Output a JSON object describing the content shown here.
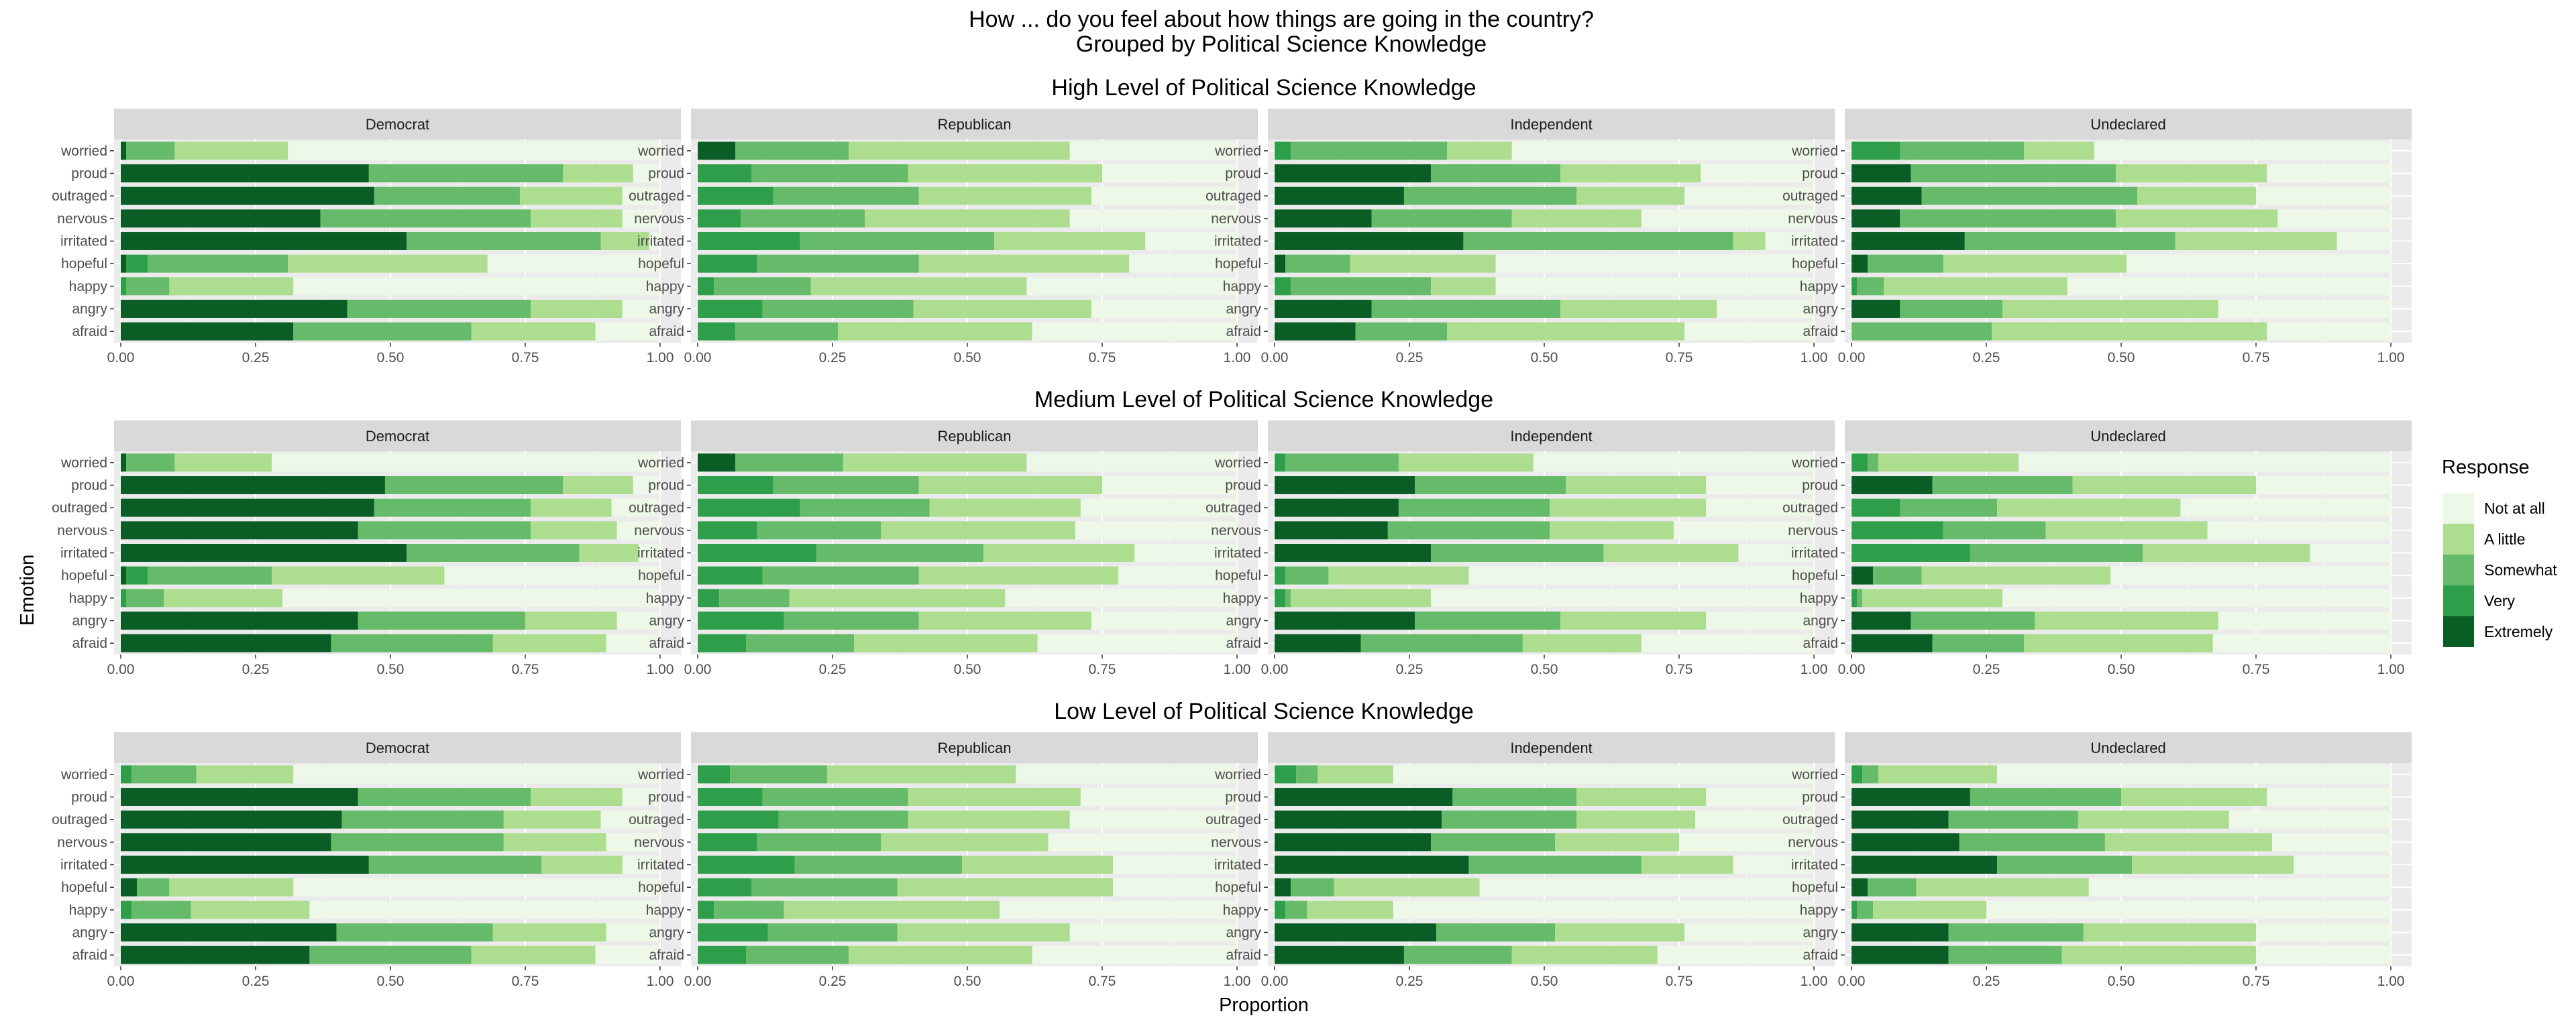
{
  "title_line1": "How ... do you feel about how things are going in the country?",
  "title_line2": "Grouped by Political Science Knowledge",
  "x_axis_title": "Proportion",
  "y_axis_title": "Emotion",
  "legend": {
    "title": "Response",
    "items": [
      {
        "label": "Not at all",
        "color": "#edf8e9"
      },
      {
        "label": "A little",
        "color": "#addd8e"
      },
      {
        "label": "Somewhat",
        "color": "#66bb6a"
      },
      {
        "label": "Very",
        "color": "#2e9e4a"
      },
      {
        "label": "Extremely",
        "color": "#0b5d26"
      }
    ]
  },
  "x_ticks": [
    "0.00",
    "0.25",
    "0.50",
    "0.75",
    "1.00"
  ],
  "chart_data": {
    "type": "bar",
    "orientation": "horizontal",
    "stacked": true,
    "xlabel": "Proportion",
    "ylabel": "Emotion",
    "xlim": [
      0,
      1
    ],
    "grid": true,
    "legend_position": "right",
    "categories": [
      "worried",
      "proud",
      "outraged",
      "nervous",
      "irritated",
      "hopeful",
      "happy",
      "angry",
      "afraid"
    ],
    "response_order": [
      "Extremely",
      "Very",
      "Somewhat",
      "A little",
      "Not at all"
    ],
    "panels": [
      {
        "title": "High Level of Political Science Knowledge",
        "facets": [
          {
            "name": "Democrat",
            "cum": [
              [
                0.01,
                0.01,
                0.1,
                0.31,
                1.0
              ],
              [
                0.46,
                0.46,
                0.82,
                0.95,
                1.0
              ],
              [
                0.47,
                0.47,
                0.74,
                0.93,
                1.0
              ],
              [
                0.37,
                0.37,
                0.76,
                0.93,
                1.0
              ],
              [
                0.53,
                0.53,
                0.89,
                0.98,
                1.0
              ],
              [
                0.01,
                0.05,
                0.31,
                0.68,
                1.0
              ],
              [
                0.0,
                0.01,
                0.09,
                0.32,
                1.0
              ],
              [
                0.42,
                0.42,
                0.76,
                0.93,
                1.0
              ],
              [
                0.32,
                0.32,
                0.65,
                0.88,
                1.0
              ]
            ]
          },
          {
            "name": "Republican",
            "cum": [
              [
                0.07,
                0.07,
                0.28,
                0.69,
                1.0
              ],
              [
                0.0,
                0.1,
                0.39,
                0.75,
                1.0
              ],
              [
                0.0,
                0.14,
                0.41,
                0.73,
                1.0
              ],
              [
                0.0,
                0.08,
                0.31,
                0.69,
                1.0
              ],
              [
                0.0,
                0.19,
                0.55,
                0.83,
                1.0
              ],
              [
                0.0,
                0.11,
                0.41,
                0.8,
                1.0
              ],
              [
                0.0,
                0.03,
                0.21,
                0.61,
                1.0
              ],
              [
                0.0,
                0.12,
                0.4,
                0.73,
                1.0
              ],
              [
                0.0,
                0.07,
                0.26,
                0.62,
                1.0
              ]
            ]
          },
          {
            "name": "Independent",
            "cum": [
              [
                0.0,
                0.03,
                0.32,
                0.44,
                1.0
              ],
              [
                0.29,
                0.29,
                0.53,
                0.79,
                1.0
              ],
              [
                0.24,
                0.24,
                0.56,
                0.76,
                1.0
              ],
              [
                0.18,
                0.18,
                0.44,
                0.68,
                1.0
              ],
              [
                0.35,
                0.35,
                0.85,
                0.91,
                1.0
              ],
              [
                0.02,
                0.02,
                0.14,
                0.41,
                1.0
              ],
              [
                0.0,
                0.03,
                0.29,
                0.41,
                1.0
              ],
              [
                0.18,
                0.18,
                0.53,
                0.82,
                1.0
              ],
              [
                0.15,
                0.15,
                0.32,
                0.76,
                1.0
              ]
            ]
          },
          {
            "name": "Undeclared",
            "cum": [
              [
                0.0,
                0.09,
                0.32,
                0.45,
                1.0
              ],
              [
                0.11,
                0.11,
                0.49,
                0.77,
                1.0
              ],
              [
                0.13,
                0.13,
                0.53,
                0.75,
                1.0
              ],
              [
                0.09,
                0.09,
                0.49,
                0.79,
                1.0
              ],
              [
                0.21,
                0.21,
                0.6,
                0.9,
                1.0
              ],
              [
                0.03,
                0.03,
                0.17,
                0.51,
                1.0
              ],
              [
                0.0,
                0.01,
                0.06,
                0.4,
                1.0
              ],
              [
                0.09,
                0.09,
                0.28,
                0.68,
                1.0
              ],
              [
                0.0,
                0.0,
                0.26,
                0.77,
                1.0
              ]
            ]
          }
        ]
      },
      {
        "title": "Medium Level of Political Science Knowledge",
        "facets": [
          {
            "name": "Democrat",
            "cum": [
              [
                0.01,
                0.01,
                0.1,
                0.28,
                1.0
              ],
              [
                0.49,
                0.49,
                0.82,
                0.95,
                1.0
              ],
              [
                0.47,
                0.47,
                0.76,
                0.91,
                1.0
              ],
              [
                0.44,
                0.44,
                0.76,
                0.92,
                1.0
              ],
              [
                0.53,
                0.53,
                0.85,
                0.96,
                1.0
              ],
              [
                0.01,
                0.05,
                0.28,
                0.6,
                1.0
              ],
              [
                0.0,
                0.01,
                0.08,
                0.3,
                1.0
              ],
              [
                0.44,
                0.44,
                0.75,
                0.92,
                1.0
              ],
              [
                0.39,
                0.39,
                0.69,
                0.9,
                1.0
              ]
            ]
          },
          {
            "name": "Republican",
            "cum": [
              [
                0.07,
                0.07,
                0.27,
                0.61,
                1.0
              ],
              [
                0.0,
                0.14,
                0.41,
                0.75,
                1.0
              ],
              [
                0.0,
                0.19,
                0.43,
                0.71,
                1.0
              ],
              [
                0.0,
                0.11,
                0.34,
                0.7,
                1.0
              ],
              [
                0.0,
                0.22,
                0.53,
                0.81,
                1.0
              ],
              [
                0.0,
                0.12,
                0.41,
                0.78,
                1.0
              ],
              [
                0.0,
                0.04,
                0.17,
                0.57,
                1.0
              ],
              [
                0.0,
                0.16,
                0.41,
                0.73,
                1.0
              ],
              [
                0.0,
                0.09,
                0.29,
                0.63,
                1.0
              ]
            ]
          },
          {
            "name": "Independent",
            "cum": [
              [
                0.0,
                0.02,
                0.23,
                0.48,
                1.0
              ],
              [
                0.26,
                0.26,
                0.54,
                0.8,
                1.0
              ],
              [
                0.23,
                0.23,
                0.51,
                0.8,
                1.0
              ],
              [
                0.21,
                0.21,
                0.51,
                0.74,
                1.0
              ],
              [
                0.29,
                0.29,
                0.61,
                0.86,
                1.0
              ],
              [
                0.0,
                0.02,
                0.1,
                0.36,
                1.0
              ],
              [
                0.0,
                0.02,
                0.03,
                0.29,
                1.0
              ],
              [
                0.26,
                0.26,
                0.53,
                0.8,
                1.0
              ],
              [
                0.16,
                0.16,
                0.46,
                0.68,
                1.0
              ]
            ]
          },
          {
            "name": "Undeclared",
            "cum": [
              [
                0.0,
                0.03,
                0.05,
                0.31,
                1.0
              ],
              [
                0.15,
                0.15,
                0.41,
                0.75,
                1.0
              ],
              [
                0.0,
                0.09,
                0.27,
                0.61,
                1.0
              ],
              [
                0.0,
                0.17,
                0.36,
                0.66,
                1.0
              ],
              [
                0.0,
                0.22,
                0.54,
                0.85,
                1.0
              ],
              [
                0.04,
                0.04,
                0.13,
                0.48,
                1.0
              ],
              [
                0.0,
                0.01,
                0.02,
                0.28,
                1.0
              ],
              [
                0.11,
                0.11,
                0.34,
                0.68,
                1.0
              ],
              [
                0.15,
                0.15,
                0.32,
                0.67,
                1.0
              ]
            ]
          }
        ]
      },
      {
        "title": "Low Level of Political Science Knowledge",
        "facets": [
          {
            "name": "Democrat",
            "cum": [
              [
                0.0,
                0.02,
                0.14,
                0.32,
                1.0
              ],
              [
                0.44,
                0.44,
                0.76,
                0.93,
                1.0
              ],
              [
                0.41,
                0.41,
                0.71,
                0.89,
                1.0
              ],
              [
                0.39,
                0.39,
                0.71,
                0.9,
                1.0
              ],
              [
                0.46,
                0.46,
                0.78,
                0.93,
                1.0
              ],
              [
                0.03,
                0.03,
                0.09,
                0.32,
                1.0
              ],
              [
                0.0,
                0.02,
                0.13,
                0.35,
                1.0
              ],
              [
                0.4,
                0.4,
                0.69,
                0.9,
                1.0
              ],
              [
                0.35,
                0.35,
                0.65,
                0.88,
                1.0
              ]
            ]
          },
          {
            "name": "Republican",
            "cum": [
              [
                0.0,
                0.06,
                0.24,
                0.59,
                1.0
              ],
              [
                0.0,
                0.12,
                0.39,
                0.71,
                1.0
              ],
              [
                0.0,
                0.15,
                0.39,
                0.69,
                1.0
              ],
              [
                0.0,
                0.11,
                0.34,
                0.65,
                1.0
              ],
              [
                0.0,
                0.18,
                0.49,
                0.77,
                1.0
              ],
              [
                0.0,
                0.1,
                0.37,
                0.77,
                1.0
              ],
              [
                0.0,
                0.03,
                0.16,
                0.56,
                1.0
              ],
              [
                0.0,
                0.13,
                0.37,
                0.69,
                1.0
              ],
              [
                0.0,
                0.09,
                0.28,
                0.62,
                1.0
              ]
            ]
          },
          {
            "name": "Independent",
            "cum": [
              [
                0.0,
                0.04,
                0.08,
                0.22,
                1.0
              ],
              [
                0.33,
                0.33,
                0.56,
                0.8,
                1.0
              ],
              [
                0.31,
                0.31,
                0.56,
                0.78,
                1.0
              ],
              [
                0.29,
                0.29,
                0.52,
                0.75,
                1.0
              ],
              [
                0.36,
                0.36,
                0.68,
                0.85,
                1.0
              ],
              [
                0.03,
                0.03,
                0.11,
                0.38,
                1.0
              ],
              [
                0.0,
                0.02,
                0.06,
                0.22,
                1.0
              ],
              [
                0.3,
                0.3,
                0.52,
                0.76,
                1.0
              ],
              [
                0.24,
                0.24,
                0.44,
                0.71,
                1.0
              ]
            ]
          },
          {
            "name": "Undeclared",
            "cum": [
              [
                0.0,
                0.02,
                0.05,
                0.27,
                1.0
              ],
              [
                0.22,
                0.22,
                0.5,
                0.77,
                1.0
              ],
              [
                0.18,
                0.18,
                0.42,
                0.7,
                1.0
              ],
              [
                0.2,
                0.2,
                0.47,
                0.78,
                1.0
              ],
              [
                0.27,
                0.27,
                0.52,
                0.82,
                1.0
              ],
              [
                0.03,
                0.03,
                0.12,
                0.44,
                1.0
              ],
              [
                0.0,
                0.01,
                0.04,
                0.25,
                1.0
              ],
              [
                0.18,
                0.18,
                0.43,
                0.75,
                1.0
              ],
              [
                0.18,
                0.18,
                0.39,
                0.75,
                1.0
              ]
            ]
          }
        ]
      }
    ]
  }
}
